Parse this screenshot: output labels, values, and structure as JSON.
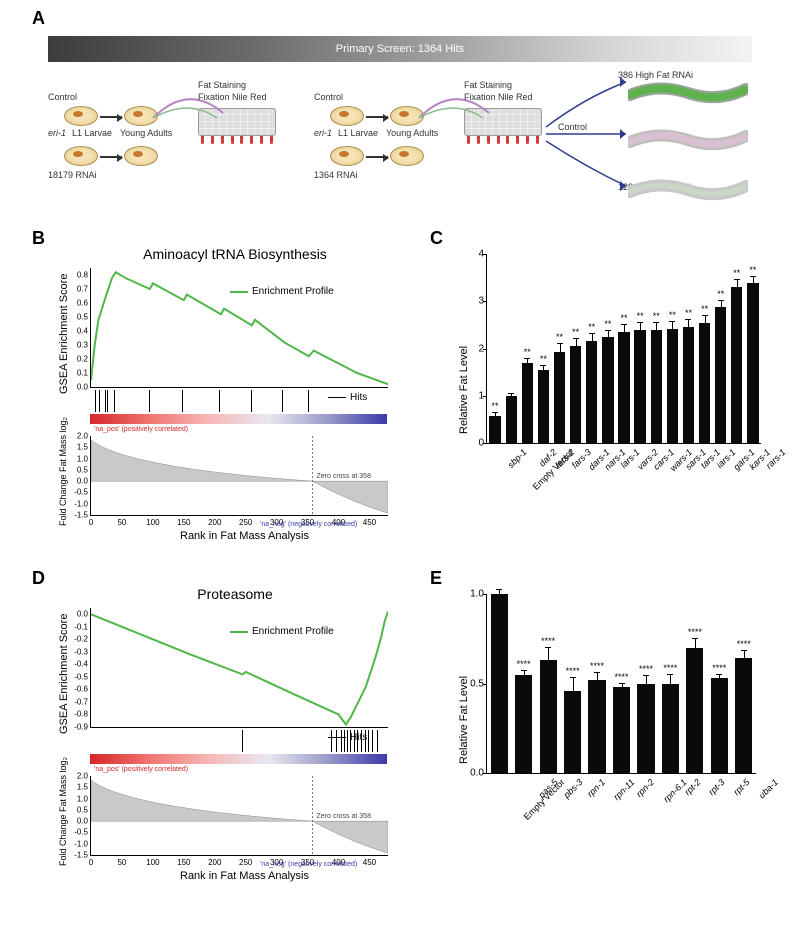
{
  "panel_labels": {
    "A": "A",
    "B": "B",
    "C": "C",
    "D": "D",
    "E": "E"
  },
  "panelA": {
    "primary_bar_label": "Primary Screen: 1364 Hits",
    "labels": {
      "control": "Control",
      "eri": "eri-1",
      "larvae": "L1 Larvae",
      "young_adults": "Young Adults",
      "fat_staining": "Fat Staining",
      "fixation": "Fixation Nile Red",
      "rnai_left": "18179 RNAi",
      "rnai_right": "1364 RNAi",
      "high_fat": "386 High Fat RNAi",
      "low_fat": "128 Low Fat RNAi"
    },
    "colors": {
      "arrow": "#2a2a2a",
      "curve": "#b585c5",
      "worm_high": "#5fb34f",
      "worm_ctrl": "#d9c0d0",
      "worm_low": "#cad7c6"
    }
  },
  "panelB": {
    "title": "Aminoacyl tRNA Biosynthesis",
    "ylabel_top": "GSEA Enrichment Score",
    "ylabel_bottom": "Fold Change Fat Mass\nlog₂",
    "xlabel": "Rank in Fat Mass Analysis",
    "legend_profile": "Enrichment Profile",
    "legend_hits": "Hits",
    "line_color": "#4fb648",
    "heat_gradient": [
      "#d62728",
      "#f07470",
      "#f7b7b6",
      "#e8e8f0",
      "#9a9acb",
      "#3a3aa8"
    ],
    "yticks_top": [
      0.0,
      0.1,
      0.2,
      0.3,
      0.4,
      0.5,
      0.6,
      0.7,
      0.8
    ],
    "xticks": [
      0,
      50,
      100,
      150,
      200,
      250,
      300,
      350,
      400,
      450
    ],
    "xmax": 480,
    "yticks_bottom": [
      2.0,
      1.5,
      1.0,
      0.5,
      0.0,
      -0.5,
      -1.0,
      -1.5
    ],
    "zero_cross_text": "Zero cross at 358",
    "pos_text": "'na_pos' (positively correlated)",
    "neg_text": "'na_neg' (negatively correlated)",
    "hit_positions": [
      8,
      14,
      24,
      28,
      38,
      95,
      148,
      208,
      260,
      310,
      352
    ],
    "profile_points": [
      [
        0,
        0.05
      ],
      [
        6,
        0.3
      ],
      [
        12,
        0.48
      ],
      [
        22,
        0.62
      ],
      [
        34,
        0.78
      ],
      [
        40,
        0.82
      ],
      [
        55,
        0.78
      ],
      [
        95,
        0.7
      ],
      [
        100,
        0.74
      ],
      [
        150,
        0.62
      ],
      [
        155,
        0.66
      ],
      [
        210,
        0.52
      ],
      [
        215,
        0.56
      ],
      [
        260,
        0.44
      ],
      [
        265,
        0.48
      ],
      [
        312,
        0.32
      ],
      [
        352,
        0.22
      ],
      [
        360,
        0.26
      ],
      [
        430,
        0.1
      ],
      [
        480,
        0.02
      ]
    ]
  },
  "panelC": {
    "ylabel": "Relative Fat Level",
    "ymax": 4,
    "ytick_step": 1,
    "bar_color": "#0a0a0a",
    "bars": [
      {
        "label": "sbp-1",
        "val": 0.58,
        "err": 0.05,
        "sig": "**"
      },
      {
        "label": "Empty Vector",
        "val": 1.0,
        "err": 0.04,
        "sig": ""
      },
      {
        "label": "daf-2",
        "val": 1.7,
        "err": 0.08,
        "sig": "**"
      },
      {
        "label": "lars-2",
        "val": 1.55,
        "err": 0.07,
        "sig": "**"
      },
      {
        "label": "fars-3",
        "val": 1.92,
        "err": 0.18,
        "sig": "**"
      },
      {
        "label": "dars-1",
        "val": 2.05,
        "err": 0.15,
        "sig": "**"
      },
      {
        "label": "nars-1",
        "val": 2.15,
        "err": 0.15,
        "sig": "**"
      },
      {
        "label": "lars-1",
        "val": 2.25,
        "err": 0.12,
        "sig": "**"
      },
      {
        "label": "vars-2",
        "val": 2.35,
        "err": 0.14,
        "sig": "**"
      },
      {
        "label": "cars-1",
        "val": 2.4,
        "err": 0.14,
        "sig": "**"
      },
      {
        "label": "wars-1",
        "val": 2.4,
        "err": 0.15,
        "sig": "**"
      },
      {
        "label": "sars-1",
        "val": 2.42,
        "err": 0.14,
        "sig": "**"
      },
      {
        "label": "tars-1",
        "val": 2.45,
        "err": 0.15,
        "sig": "**"
      },
      {
        "label": "iars-1",
        "val": 2.55,
        "err": 0.14,
        "sig": "**"
      },
      {
        "label": "gars-1",
        "val": 2.88,
        "err": 0.13,
        "sig": "**"
      },
      {
        "label": "kars-1",
        "val": 3.3,
        "err": 0.14,
        "sig": "**"
      },
      {
        "label": "rars-1",
        "val": 3.38,
        "err": 0.14,
        "sig": "**"
      }
    ]
  },
  "panelD": {
    "title": "Proteasome",
    "ylabel_top": "GSEA Enrichment Score",
    "ylabel_bottom": "Fold Change Fat Mass\nlog₂",
    "xlabel": "Rank in Fat Mass Analysis",
    "legend_profile": "Enrichment Profile",
    "legend_hits": "Hits",
    "line_color": "#4fb648",
    "yticks_top": [
      0.0,
      -0.1,
      -0.2,
      -0.3,
      -0.4,
      -0.5,
      -0.6,
      -0.7,
      -0.8,
      -0.9
    ],
    "xticks": [
      0,
      50,
      100,
      150,
      200,
      250,
      300,
      350,
      400,
      450
    ],
    "xmax": 480,
    "hit_positions": [
      245,
      390,
      398,
      405,
      410,
      415,
      420,
      426,
      432,
      438,
      444,
      450,
      456,
      464
    ],
    "profile_points": [
      [
        0,
        0.0
      ],
      [
        50,
        -0.1
      ],
      [
        100,
        -0.2
      ],
      [
        160,
        -0.32
      ],
      [
        245,
        -0.48
      ],
      [
        250,
        -0.46
      ],
      [
        320,
        -0.62
      ],
      [
        400,
        -0.8
      ],
      [
        412,
        -0.88
      ],
      [
        420,
        -0.82
      ],
      [
        432,
        -0.7
      ],
      [
        444,
        -0.58
      ],
      [
        452,
        -0.46
      ],
      [
        460,
        -0.34
      ],
      [
        468,
        -0.2
      ],
      [
        475,
        -0.05
      ],
      [
        480,
        0.02
      ]
    ],
    "yticks_bottom": [
      2.0,
      1.5,
      1.0,
      0.5,
      0.0,
      -0.5,
      -1.0,
      -1.5
    ],
    "zero_cross_text": "Zero cross at 358",
    "pos_text": "'na_pos' (positively correlated)",
    "neg_text": "'na_neg' (negatively correlated)",
    "heat_gradient": [
      "#d62728",
      "#f07470",
      "#f7b7b6",
      "#e8e8f0",
      "#9a9acb",
      "#3a3aa8"
    ]
  },
  "panelE": {
    "ylabel": "Relative Fat Level",
    "ymax": 1.0,
    "ytick_step": 0.5,
    "bar_color": "#0a0a0a",
    "bars": [
      {
        "label": "Empty Vector",
        "val": 1.0,
        "err": 0.02,
        "sig": ""
      },
      {
        "label": "pas-5",
        "val": 0.55,
        "err": 0.02,
        "sig": "****"
      },
      {
        "label": "pbs-3",
        "val": 0.63,
        "err": 0.07,
        "sig": "****"
      },
      {
        "label": "rpn-1",
        "val": 0.46,
        "err": 0.07,
        "sig": "****"
      },
      {
        "label": "rpn-11",
        "val": 0.52,
        "err": 0.04,
        "sig": "****"
      },
      {
        "label": "rpn-2",
        "val": 0.48,
        "err": 0.02,
        "sig": "****"
      },
      {
        "label": "rpn-6.1",
        "val": 0.5,
        "err": 0.04,
        "sig": "****"
      },
      {
        "label": "rpt-2",
        "val": 0.5,
        "err": 0.05,
        "sig": "****"
      },
      {
        "label": "rpt-3",
        "val": 0.7,
        "err": 0.05,
        "sig": "****"
      },
      {
        "label": "rpt-5",
        "val": 0.53,
        "err": 0.02,
        "sig": "****"
      },
      {
        "label": "uba-1",
        "val": 0.64,
        "err": 0.04,
        "sig": "****"
      }
    ]
  }
}
